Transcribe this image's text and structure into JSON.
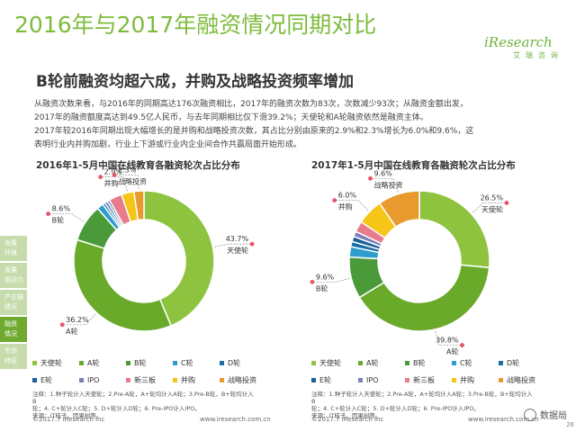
{
  "title": "2016年与2017年融资情况同期对比",
  "logo": {
    "main": "iResearch",
    "sub": "艾瑞咨询"
  },
  "subtitle": "B轮前融资均超六成，并购及战略投资频率增加",
  "paragraph": [
    "从融资次数来看，与2016年的同期高达176次融资相比，2017年的融资次数为83次，次数减少93次；从融资金额出发，",
    "2017年的融资额度高达到49.5亿人民币，与去年同期相比仅下滑39.2%；天使轮和A轮融资依然是融资主体。",
    "2017年较2016年同期出现大幅增长的是并购和战略投资次数，其占比分别由原来的2.9%和2.3%增长为6.0%和9.6%，这",
    "表明行业内并购加剧，行业上下游或行业内企业间合作共赢局面开始形成。"
  ],
  "side_nav": [
    {
      "label1": "发展",
      "label2": "环境"
    },
    {
      "label1": "发展",
      "label2": "驱动力"
    },
    {
      "label1": "产业链",
      "label2": "情况"
    },
    {
      "label1": "融资",
      "label2": "情况"
    },
    {
      "label1": "市场",
      "label2": "特征"
    }
  ],
  "legend_rows": [
    [
      "天使轮",
      "A轮",
      "B轮",
      "C轮",
      "D轮"
    ],
    [
      "E轮",
      "IPO",
      "新三板",
      "并购",
      "战略投资"
    ]
  ],
  "chart_data": [
    {
      "type": "pie",
      "title": "2016年1-5月中国在线教育各融资轮次占比分布",
      "categories": [
        "天使轮",
        "A轮",
        "B轮",
        "C轮",
        "D轮",
        "E轮",
        "IPO",
        "新三板",
        "并购",
        "战略投资"
      ],
      "values": [
        43.7,
        36.2,
        8.6,
        1.5,
        0.6,
        0.6,
        0.6,
        3.0,
        2.9,
        2.3
      ],
      "colors": [
        "#8dc33f",
        "#6aaa2b",
        "#4a9a3a",
        "#2d9ccf",
        "#1b6ea6",
        "#1a5f9a",
        "#7b7fb9",
        "#e87b8c",
        "#f5c518",
        "#e89a2f"
      ],
      "labels": [
        {
          "category": "天使轮",
          "percent": "43.7%"
        },
        {
          "category": "A轮",
          "percent": "36.2%"
        },
        {
          "category": "B轮",
          "percent": "8.6%"
        },
        {
          "category": "并购",
          "percent": "2.9%"
        },
        {
          "category": "战略投资",
          "percent": "2.3%"
        }
      ]
    },
    {
      "type": "pie",
      "title": "2017年1-5月中国在线教育各融资轮次占比分布",
      "categories": [
        "天使轮",
        "A轮",
        "B轮",
        "C轮",
        "D轮",
        "E轮",
        "IPO",
        "新三板",
        "并购",
        "战略投资"
      ],
      "values": [
        26.5,
        39.8,
        9.6,
        2.4,
        1.2,
        1.2,
        1.2,
        2.5,
        6.0,
        9.6
      ],
      "colors": [
        "#8dc33f",
        "#6aaa2b",
        "#4a9a3a",
        "#2d9ccf",
        "#1b6ea6",
        "#1a5f9a",
        "#7b7fb9",
        "#e87b8c",
        "#f5c518",
        "#e89a2f"
      ],
      "labels": [
        {
          "category": "天使轮",
          "percent": "26.5%"
        },
        {
          "category": "A轮",
          "percent": "39.8%"
        },
        {
          "category": "B轮",
          "percent": "9.6%"
        },
        {
          "category": "并购",
          "percent": "6.0%"
        },
        {
          "category": "战略投资",
          "percent": "9.6%"
        }
      ]
    }
  ],
  "notes": [
    "注释：1.种子轮计入天使轮；2.Pre-A轮，A+轮均计入A轮；3.Pre-B轮，B+轮均计入B",
    "轮；4. C+轮计入C轮；5. D+轮计入D轮；6. Pre-IPO计入IPO。",
    "来源：IT桔子，因果树等。"
  ],
  "footer": {
    "copyright": "©2017.7 iResearch Inc",
    "site": "www.iresearch.com.cn"
  },
  "badge": "数据局",
  "page_number": "26"
}
